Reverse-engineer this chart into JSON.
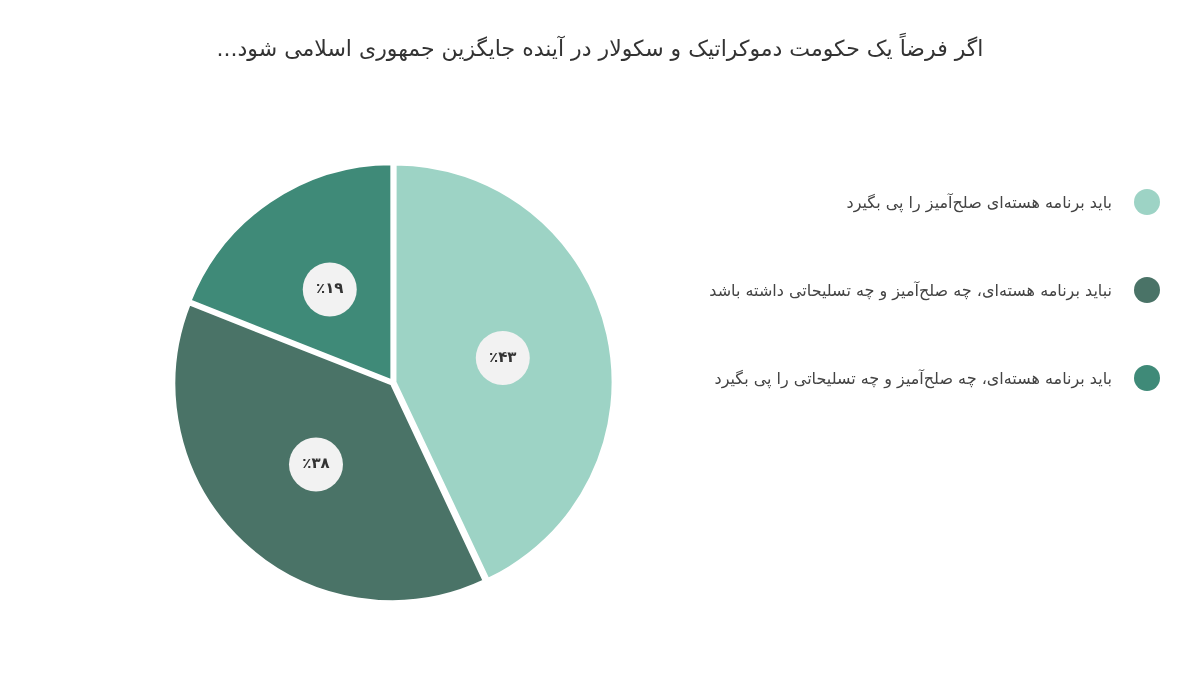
{
  "chart_data": {
    "type": "pie",
    "title": "اگر فرضاً یک حکومت دموکراتیک و سکولار در آینده جایگزین جمهوری اسلامی شود...",
    "categories": [
      "باید برنامه هسته‌ای صلح‌آمیز را پی بگیرد",
      "نباید برنامه هسته‌ای، چه صلح‌آمیز و چه تسلیحاتی داشته باشد",
      "باید برنامه هسته‌ای، چه صلح‌آمیز و چه تسلیحاتی را پی بگیرد"
    ],
    "values": [
      43,
      38,
      19
    ],
    "colors": [
      "#9dd3c5",
      "#4a7367",
      "#3f8a78"
    ],
    "value_labels": [
      "٪۴۳",
      "٪۳۸",
      "٪۱۹"
    ],
    "legend": "right"
  }
}
